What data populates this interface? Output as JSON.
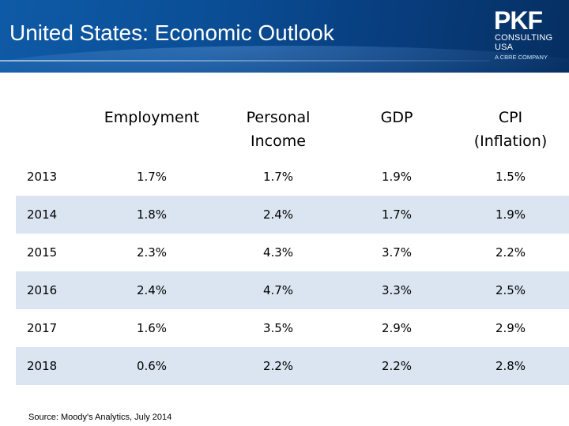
{
  "header": {
    "title": "United States: Economic Outlook",
    "logo": {
      "mark": "PKF",
      "line1": "CONSULTING",
      "line2": "USA",
      "line3": "A CBRE COMPANY"
    }
  },
  "table": {
    "columns": [
      "",
      "Employment",
      "Personal Income",
      "GDP",
      "CPI (Inflation)"
    ],
    "rows": [
      {
        "year": "2013",
        "employment": "1.7%",
        "personal_income": "1.7%",
        "gdp": "1.9%",
        "cpi": "1.5%"
      },
      {
        "year": "2014",
        "employment": "1.8%",
        "personal_income": "2.4%",
        "gdp": "1.7%",
        "cpi": "1.9%"
      },
      {
        "year": "2015",
        "employment": "2.3%",
        "personal_income": "4.3%",
        "gdp": "3.7%",
        "cpi": "2.2%"
      },
      {
        "year": "2016",
        "employment": "2.4%",
        "personal_income": "4.7%",
        "gdp": "3.3%",
        "cpi": "2.5%"
      },
      {
        "year": "2017",
        "employment": "1.6%",
        "personal_income": "3.5%",
        "gdp": "2.9%",
        "cpi": "2.9%"
      },
      {
        "year": "2018",
        "employment": "0.6%",
        "personal_income": "2.2%",
        "gdp": "2.2%",
        "cpi": "2.8%"
      }
    ]
  },
  "source": "Source: Moody's Analytics, July 2014"
}
